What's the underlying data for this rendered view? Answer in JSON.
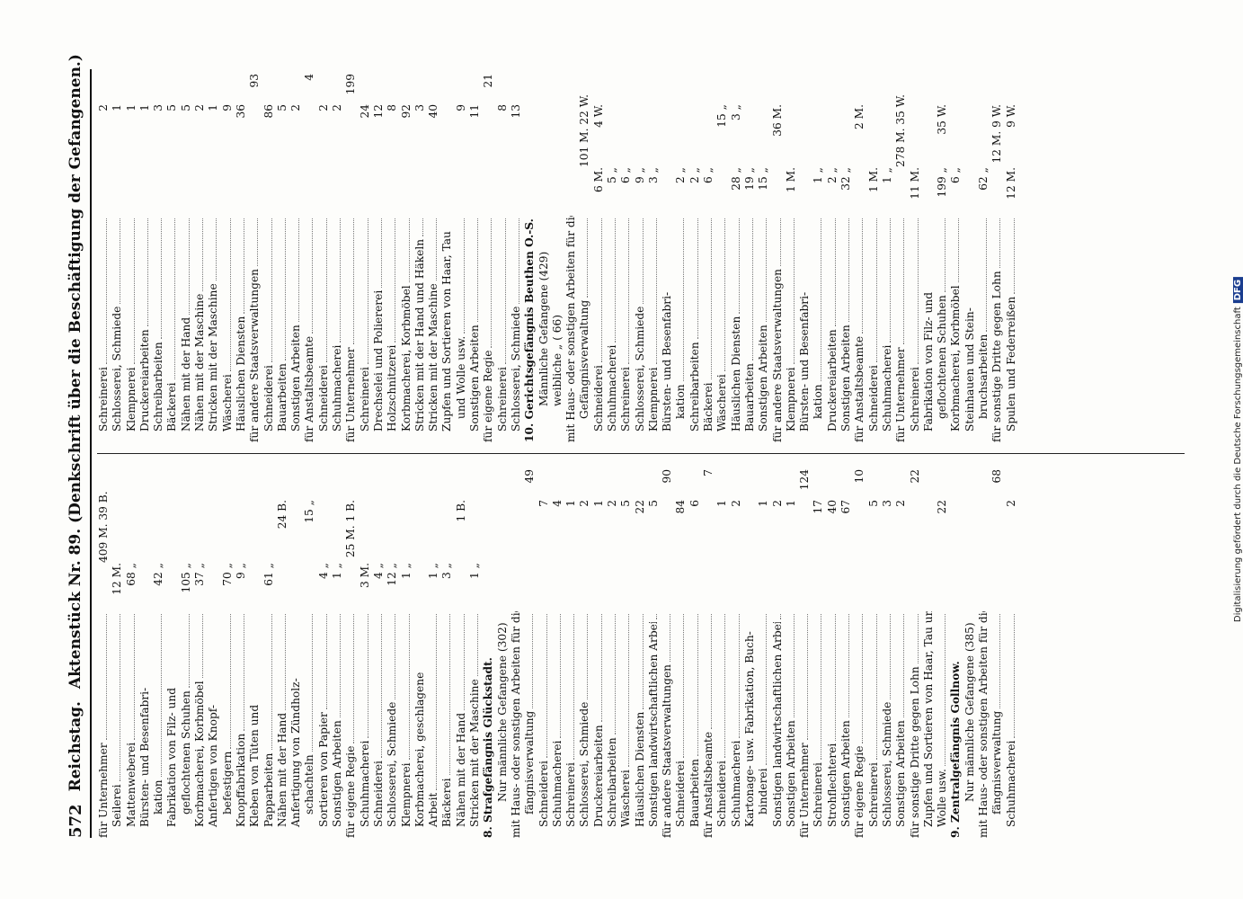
{
  "header": {
    "page_number": "572",
    "left": "Reichstag.",
    "title": "Aktenstück Nr. 89. (Denkschrift über die Beschäftigung der Gefangenen.)"
  },
  "col1": [
    [
      "für Unternehmer",
      "",
      "409 M. 39 B.",
      ""
    ],
    [
      "Seilerei",
      "12 M.",
      "",
      ""
    ],
    [
      "Mattenweberei",
      "68 „",
      "",
      ""
    ],
    [
      "Bürsten- und Besenfabri-",
      "",
      "",
      ""
    ],
    [
      "kation",
      "42 „",
      "",
      ""
    ],
    [
      "Fabrikation von Filz- und",
      "",
      "",
      ""
    ],
    [
      "geflochtenen Schuhen",
      "105 „",
      "",
      ""
    ],
    [
      "Korbmacherei, Korbmöbel",
      "37 „",
      "",
      ""
    ],
    [
      "Anfertigen von Knopf-",
      "",
      "",
      ""
    ],
    [
      "befestigern",
      "70 „",
      "",
      ""
    ],
    [
      "Knopffabrikation",
      "9 „",
      "",
      ""
    ],
    [
      "Kleben von Tüten und",
      "",
      "",
      ""
    ],
    [
      "Papparbeiten",
      "61 „",
      "",
      ""
    ],
    [
      "Nähen mit der Hand",
      "",
      "24 B.",
      ""
    ],
    [
      "Anfertigung von Zündholz-",
      "",
      "",
      ""
    ],
    [
      "schachteln",
      "",
      "15 „",
      ""
    ],
    [
      "Sortieren von Papier",
      "4 „",
      "",
      ""
    ],
    [
      "Sonstigen Arbeiten",
      "1 „",
      "",
      ""
    ],
    [
      "für eigene Regie",
      "",
      "25 M. 1 B.",
      ""
    ],
    [
      "Schuhmacherei",
      "3 M.",
      "",
      ""
    ],
    [
      "Schneiderei",
      "4 „",
      "",
      ""
    ],
    [
      "Schlosserei, Schmiede",
      "12 „",
      "",
      ""
    ],
    [
      "Klempnerei",
      "1 „",
      "",
      ""
    ],
    [
      "Korbmacherei, geschlagene",
      "",
      "",
      ""
    ],
    [
      "Arbeit",
      "1 „",
      "",
      ""
    ],
    [
      "Bäckerei",
      "3 „",
      "",
      ""
    ],
    [
      "Nähen mit der Hand",
      "",
      "1 B.",
      ""
    ],
    [
      "Stricken mit der Maschine",
      "1 „",
      "",
      ""
    ],
    [
      "8. Strafgefängnis Glückstadt.",
      "",
      "",
      ""
    ],
    [
      "Nur männliche Gefangene (302)",
      "",
      "",
      ""
    ],
    [
      "mit Haus- oder sonstigen Arbeiten für die Ge-",
      "",
      "",
      ""
    ],
    [
      "fängnisverwaltung",
      "",
      "",
      "49"
    ],
    [
      "Schneiderei",
      "",
      "7",
      ""
    ],
    [
      "Schuhmacherei",
      "",
      "4",
      ""
    ],
    [
      "Schreinerei",
      "",
      "1",
      ""
    ],
    [
      "Schlosserei, Schmiede",
      "",
      "2",
      ""
    ],
    [
      "Druckereiarbeiten",
      "",
      "1",
      ""
    ],
    [
      "Schreibarbeiten",
      "",
      "2",
      ""
    ],
    [
      "Wäscherei",
      "",
      "5",
      ""
    ],
    [
      "Häuslichen Diensten",
      "",
      "22",
      ""
    ],
    [
      "Sonstigen landwirtschaftlichen Arbeiten",
      "",
      "5",
      ""
    ],
    [
      "für andere Staatsverwaltungen",
      "",
      "",
      "90"
    ],
    [
      "Schneiderei",
      "",
      "84",
      ""
    ],
    [
      "Bauarbeiten",
      "",
      "6",
      ""
    ],
    [
      "für Anstaltsbeamte",
      "",
      "",
      "7"
    ],
    [
      "Schneiderei",
      "",
      "1",
      ""
    ],
    [
      "Schuhmacherei",
      "",
      "2",
      ""
    ],
    [
      "Kartonage- usw. Fabrikation, Buch-",
      "",
      "",
      ""
    ],
    [
      "binderei",
      "",
      "1",
      ""
    ],
    [
      "Sonstigen landwirtschaftlichen Arbeiten",
      "",
      "2",
      ""
    ],
    [
      "Sonstigen Arbeiten",
      "",
      "1",
      ""
    ],
    [
      "für Unternehmer",
      "",
      "",
      "124"
    ],
    [
      "Schreinerei",
      "",
      "17",
      ""
    ],
    [
      "Strohflechterei",
      "",
      "40",
      ""
    ],
    [
      "Sonstigen Arbeiten",
      "",
      "67",
      ""
    ],
    [
      "für eigene Regie",
      "",
      "",
      "10"
    ],
    [
      "Schreinerei",
      "",
      "5",
      ""
    ],
    [
      "Schlosserei, Schmiede",
      "",
      "3",
      ""
    ],
    [
      "Sonstigen Arbeiten",
      "",
      "2",
      ""
    ],
    [
      "für sonstige Dritte gegen Lohn",
      "",
      "",
      "22"
    ],
    [
      "Zupfen und Sortieren von Haar, Tau und",
      "",
      "",
      ""
    ],
    [
      "Wolle usw.",
      "",
      "22",
      ""
    ],
    [
      "9. Zentralgefängnis Gollnow.",
      "",
      "",
      ""
    ],
    [
      "Nur männliche Gefangene (385)",
      "",
      "",
      ""
    ],
    [
      "mit Haus- oder sonstigen Arbeiten für die Ge-",
      "",
      "",
      ""
    ],
    [
      "fängnisverwaltung",
      "",
      "",
      "68"
    ],
    [
      "Schuhmacherei",
      "",
      "2",
      ""
    ]
  ],
  "col2": [
    [
      "Schreinerei",
      "",
      "2",
      ""
    ],
    [
      "Schlosserei, Schmiede",
      "",
      "1",
      ""
    ],
    [
      "Klempnerei",
      "",
      "1",
      ""
    ],
    [
      "Druckereiarbeiten",
      "",
      "1",
      ""
    ],
    [
      "Schreibarbeiten",
      "",
      "3",
      ""
    ],
    [
      "Bäckerei",
      "",
      "5",
      ""
    ],
    [
      "Nähen mit der Hand",
      "",
      "5",
      ""
    ],
    [
      "Nähen mit der Maschine",
      "",
      "2",
      ""
    ],
    [
      "Stricken mit der Maschine",
      "",
      "1",
      ""
    ],
    [
      "Wäscherei",
      "",
      "9",
      ""
    ],
    [
      "Häuslichen Diensten",
      "",
      "36",
      ""
    ],
    [
      "für andere Staatsverwaltungen",
      "",
      "",
      "93"
    ],
    [
      "Schneiderei",
      "",
      "86",
      ""
    ],
    [
      "Bauarbeiten",
      "",
      "5",
      ""
    ],
    [
      "Sonstigen Arbeiten",
      "",
      "2",
      ""
    ],
    [
      "für Anstaltsbeamte",
      "",
      "",
      "4"
    ],
    [
      "Schneiderei",
      "",
      "2",
      ""
    ],
    [
      "Schuhmacherei",
      "",
      "2",
      ""
    ],
    [
      "für Unternehmer",
      "",
      "",
      "199"
    ],
    [
      "Schreinerei",
      "",
      "24",
      ""
    ],
    [
      "Drechselei und Poliererei",
      "",
      "12",
      ""
    ],
    [
      "Holzschnitzerei",
      "",
      "8",
      ""
    ],
    [
      "Korbmacherei, Korbmöbel",
      "",
      "92",
      ""
    ],
    [
      "Stricken mit der Hand und Häkeln",
      "",
      "3",
      ""
    ],
    [
      "Stricken mit der Maschine",
      "",
      "40",
      ""
    ],
    [
      "Zupfen und Sortieren von Haar, Tau",
      "",
      "",
      ""
    ],
    [
      "und Wolle usw.",
      "",
      "9",
      ""
    ],
    [
      "Sonstigen Arbeiten",
      "",
      "11",
      ""
    ],
    [
      "für eigene Regie",
      "",
      "",
      "21"
    ],
    [
      "Schreinerei",
      "",
      "8",
      ""
    ],
    [
      "Schlosserei, Schmiede",
      "",
      "13",
      ""
    ],
    [
      "10. Gerichtsgefängnis Beuthen O.-S.",
      "",
      "",
      ""
    ],
    [
      "Männliche Gefangene (429)",
      "",
      "",
      ""
    ],
    [
      "weibliche „ ( 66)",
      "",
      "",
      ""
    ],
    [
      "mit Haus- oder sonstigen Arbeiten für die",
      "",
      "",
      ""
    ],
    [
      "Gefängnisverwaltung",
      "",
      "101 M. 22 W.",
      ""
    ],
    [
      "Schneiderei",
      "6 M.",
      "4 W.",
      ""
    ],
    [
      "Schuhmacherei",
      "5 „",
      "",
      ""
    ],
    [
      "Schreinerei",
      "6 „",
      "",
      ""
    ],
    [
      "Schlosserei, Schmiede",
      "9 „",
      "",
      ""
    ],
    [
      "Klempnerei",
      "3 „",
      "",
      ""
    ],
    [
      "Bürsten- und Besenfabri-",
      "",
      "",
      ""
    ],
    [
      "kation",
      "2 „",
      "",
      ""
    ],
    [
      "Schreibarbeiten",
      "2 „",
      "",
      ""
    ],
    [
      "Bäckerei",
      "6 „",
      "",
      ""
    ],
    [
      "Wäscherei",
      "",
      "15 „",
      ""
    ],
    [
      "Häuslichen Diensten",
      "28 „",
      "3 „",
      ""
    ],
    [
      "Bauarbeiten",
      "19 „",
      "",
      ""
    ],
    [
      "Sonstigen Arbeiten",
      "15 „",
      "",
      ""
    ],
    [
      "für andere Staatsverwaltungen",
      "",
      "36 M.",
      ""
    ],
    [
      "Klempnerei",
      "1 M.",
      "",
      ""
    ],
    [
      "Bürsten- und Besenfabri-",
      "",
      "",
      ""
    ],
    [
      "kation",
      "1 „",
      "",
      ""
    ],
    [
      "Druckereiarbeiten",
      "2 „",
      "",
      ""
    ],
    [
      "Sonstigen Arbeiten",
      "32 „",
      "",
      ""
    ],
    [
      "für Anstaltsbeamte",
      "",
      "2 M.",
      ""
    ],
    [
      "Schneiderei",
      "1 M.",
      "",
      ""
    ],
    [
      "Schuhmacherei",
      "1 „",
      "",
      ""
    ],
    [
      "für Unternehmer",
      "",
      "278 M. 35 W.",
      ""
    ],
    [
      "Schreinerei",
      "11 M.",
      "",
      ""
    ],
    [
      "Fabrikation von Filz- und",
      "",
      "",
      ""
    ],
    [
      "geflochtenen Schuhen",
      "199 „",
      "35 W.",
      ""
    ],
    [
      "Korbmacherei, Korbmöbel",
      "6 „",
      "",
      ""
    ],
    [
      "Steinhauen und Stein-",
      "",
      "",
      ""
    ],
    [
      "bruchsarbeiten",
      "62 „",
      "",
      ""
    ],
    [
      "für sonstige Dritte gegen Lohn",
      "",
      "12 M. 9 W.",
      ""
    ],
    [
      "Spulen und Federreißen",
      "12 M.",
      "9 W.",
      ""
    ]
  ],
  "sidebar": {
    "text": "Digitalisierung gefördert durch die Deutsche Forschungsgemeinschaft",
    "logo": "DFG"
  }
}
